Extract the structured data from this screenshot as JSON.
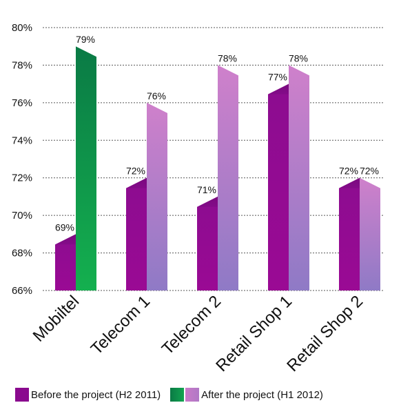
{
  "chart_data": {
    "type": "bar",
    "categories": [
      "Mobiltel",
      "Telecom 1",
      "Telecom 2",
      "Retail Shop 1",
      "Retail Shop 2"
    ],
    "series": [
      {
        "name": "Before the project (H2 2011)",
        "values": [
          69,
          72,
          71,
          77,
          72
        ],
        "labels": [
          "69%",
          "72%",
          "71%",
          "77%",
          "72%"
        ]
      },
      {
        "name": "After the project (H1 2012)",
        "values": [
          79,
          76,
          78,
          78,
          72
        ],
        "labels": [
          "79%",
          "76%",
          "78%",
          "78%",
          "72%"
        ]
      }
    ],
    "ylim": [
      66,
      80
    ],
    "yticks": [
      66,
      68,
      70,
      72,
      74,
      76,
      78,
      80
    ],
    "ytick_labels": [
      "66%",
      "68%",
      "70%",
      "72%",
      "74%",
      "76%",
      "78%",
      "80%"
    ],
    "grid": "horizontal-dotted",
    "legend_position": "bottom",
    "colors": {
      "before": "#8a0a8e",
      "after_highlight": "#0e8a4a",
      "after": "#c47ac6"
    }
  }
}
